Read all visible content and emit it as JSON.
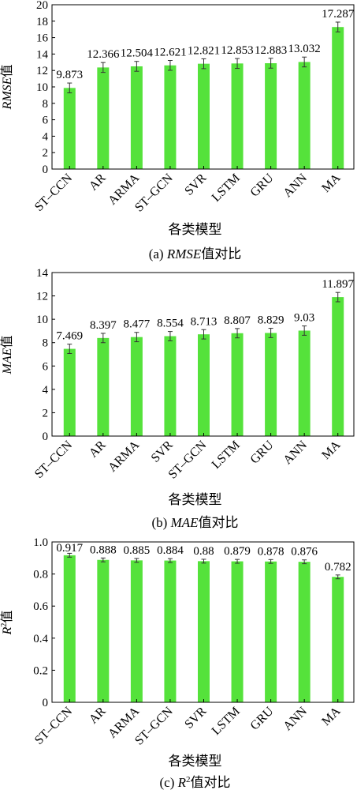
{
  "colors": {
    "bar": "#55e23b",
    "axis": "#000000",
    "error": "#333333"
  },
  "chart_data": [
    {
      "type": "bar",
      "categories": [
        "ST–CCN",
        "AR",
        "ARMA",
        "ST–GCN",
        "SVR",
        "LSTM",
        "GRU",
        "ANN",
        "MA"
      ],
      "values": [
        9.873,
        12.366,
        12.504,
        12.621,
        12.821,
        12.853,
        12.883,
        13.032,
        17.287
      ],
      "value_labels": [
        "9.873",
        "12.366",
        "12.504",
        "12.621",
        "12.821",
        "12.853",
        "12.883",
        "13.032",
        "17.287"
      ],
      "errors": [
        0.6,
        0.6,
        0.6,
        0.6,
        0.6,
        0.6,
        0.6,
        0.6,
        0.6
      ],
      "ylim": [
        0,
        20
      ],
      "yticks": [
        0,
        2,
        4,
        6,
        8,
        10,
        12,
        14,
        16,
        18,
        20
      ],
      "ylabel_italic": "RMSE",
      "ylabel_suffix": "值",
      "xlabel": "各类模型",
      "caption_prefix": "(a) ",
      "caption_italic": "RMSE",
      "caption_suffix": "值对比"
    },
    {
      "type": "bar",
      "categories": [
        "ST–CCN",
        "AR",
        "ARMA",
        "SVR",
        "ST–GCN",
        "LSTM",
        "GRU",
        "ANN",
        "MA"
      ],
      "values": [
        7.469,
        8.397,
        8.477,
        8.554,
        8.713,
        8.807,
        8.829,
        9.03,
        11.897
      ],
      "value_labels": [
        "7.469",
        "8.397",
        "8.477",
        "8.554",
        "8.713",
        "8.807",
        "8.829",
        "9.03",
        "11.897"
      ],
      "errors": [
        0.4,
        0.4,
        0.4,
        0.4,
        0.4,
        0.4,
        0.4,
        0.4,
        0.4
      ],
      "ylim": [
        0,
        14
      ],
      "yticks": [
        0,
        2,
        4,
        6,
        8,
        10,
        12,
        14
      ],
      "ylabel_italic": "MAE",
      "ylabel_suffix": "值",
      "xlabel": "各类模型",
      "caption_prefix": "(b) ",
      "caption_italic": "MAE",
      "caption_suffix": "值对比"
    },
    {
      "type": "bar",
      "categories": [
        "ST–CCN",
        "AR",
        "ARMA",
        "ST–GCN",
        "SVR",
        "LSTM",
        "GRU",
        "ANN",
        "MA"
      ],
      "values": [
        0.917,
        0.888,
        0.885,
        0.884,
        0.88,
        0.879,
        0.878,
        0.876,
        0.782
      ],
      "value_labels": [
        "0.917",
        "0.888",
        "0.885",
        "0.884",
        "0.88",
        "0.879",
        "0.878",
        "0.876",
        "0.782"
      ],
      "errors": [
        0.012,
        0.012,
        0.012,
        0.012,
        0.012,
        0.012,
        0.012,
        0.012,
        0.012
      ],
      "ylim": [
        0,
        1.0
      ],
      "yticks": [
        0,
        0.2,
        0.4,
        0.6,
        0.8,
        1.0
      ],
      "ytick_labels": [
        "0",
        "0.2",
        "0.4",
        "0.6",
        "0.8",
        "1.0"
      ],
      "ylabel_italic": "R",
      "ylabel_sup": "2",
      "ylabel_suffix": "值",
      "xlabel": "各类模型",
      "caption_prefix": "(c) ",
      "caption_italic": "R",
      "caption_sup": "2",
      "caption_suffix": "值对比"
    }
  ]
}
